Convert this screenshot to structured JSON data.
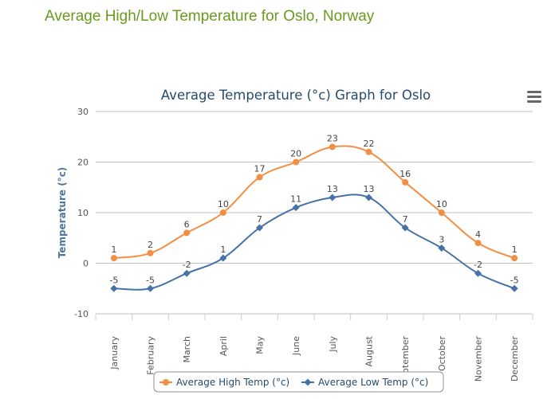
{
  "page": {
    "heading": "Average High/Low Temperature for Oslo, Norway"
  },
  "icons": {
    "menu": "hamburger-menu-icon"
  },
  "chart_data": {
    "type": "line",
    "title": "Average Temperature (°c) Graph for Oslo",
    "xlabel": "",
    "ylabel": "Temperature (°c)",
    "ylim": [
      -10,
      30
    ],
    "yticks": [
      -10,
      0,
      10,
      20,
      30
    ],
    "grid": true,
    "legend_position": "bottom-center",
    "categories": [
      "January",
      "February",
      "March",
      "April",
      "May",
      "June",
      "July",
      "August",
      "September",
      "October",
      "November",
      "December"
    ],
    "series": [
      {
        "name": "Average High Temp (°c)",
        "color": "#f28f43",
        "marker": "circle",
        "values": [
          1,
          2,
          6,
          10,
          17,
          20,
          23,
          22,
          16,
          10,
          4,
          1
        ]
      },
      {
        "name": "Average Low Temp (°c)",
        "color": "#4572a7",
        "marker": "diamond",
        "values": [
          -5,
          -5,
          -2,
          1,
          7,
          11,
          13,
          13,
          7,
          3,
          -2,
          -5
        ]
      }
    ]
  }
}
